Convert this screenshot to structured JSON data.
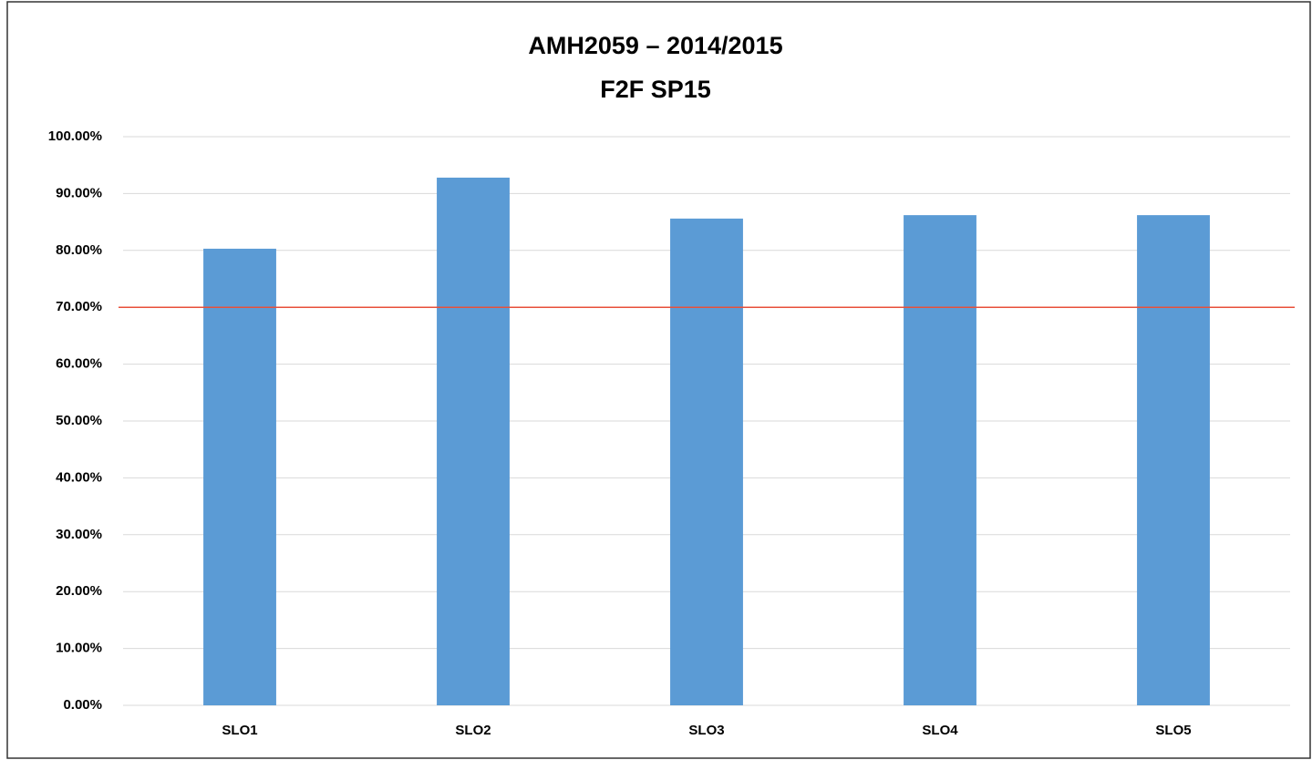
{
  "chart_data": {
    "type": "bar",
    "title": "AMH2059 – 2014/2015",
    "subtitle": "F2F SP15",
    "categories": [
      "SLO1",
      "SLO2",
      "SLO3",
      "SLO4",
      "SLO5"
    ],
    "values": [
      80.3,
      92.8,
      85.6,
      86.2,
      86.2
    ],
    "color": "#5b9bd5",
    "ylim": [
      0,
      100
    ],
    "yticks": [
      {
        "value": 0,
        "label": "0.00%"
      },
      {
        "value": 10,
        "label": "10.00%"
      },
      {
        "value": 20,
        "label": "20.00%"
      },
      {
        "value": 30,
        "label": "30.00%"
      },
      {
        "value": 40,
        "label": "40.00%"
      },
      {
        "value": 50,
        "label": "50.00%"
      },
      {
        "value": 60,
        "label": "60.00%"
      },
      {
        "value": 70,
        "label": "70.00%"
      },
      {
        "value": 80,
        "label": "80.00%"
      },
      {
        "value": 90,
        "label": "90.00%"
      },
      {
        "value": 100,
        "label": "100.00%"
      }
    ],
    "grid": true,
    "target_line": {
      "value": 70,
      "color": "#e8503a"
    }
  }
}
